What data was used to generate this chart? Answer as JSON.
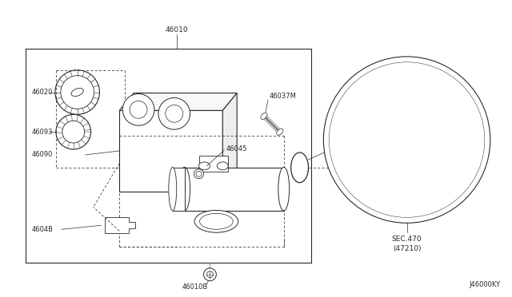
{
  "bg_color": "#ffffff",
  "line_color": "#2a2a2a",
  "fig_width": 6.4,
  "fig_height": 3.72,
  "dpi": 100,
  "diagram_code": "J46000KY",
  "sec_label": "SEC.470",
  "sec_sub": "(47210)"
}
